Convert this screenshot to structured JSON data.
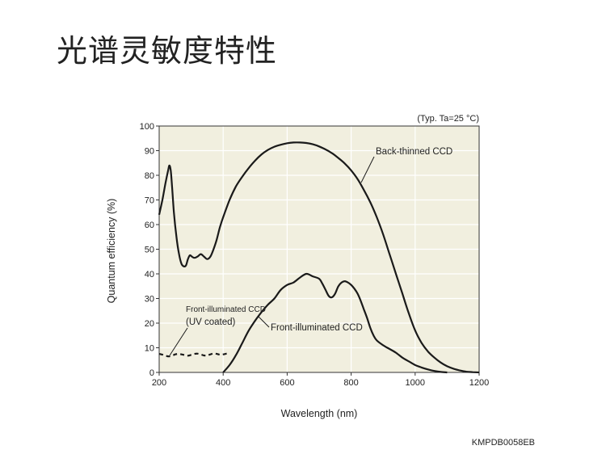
{
  "page": {
    "title": "光谱灵敏度特性",
    "doc_code": "KMPDB0058EB"
  },
  "chart_data": {
    "type": "line",
    "annotation_typ": "(Typ. Ta=25 °C)",
    "xlabel": "Wavelength (nm)",
    "ylabel": "Quantum efficiency (%)",
    "xlim": [
      200,
      1200
    ],
    "ylim": [
      0,
      100
    ],
    "x_ticks": [
      200,
      400,
      600,
      800,
      1000,
      1200
    ],
    "y_ticks": [
      0,
      10,
      20,
      30,
      40,
      50,
      60,
      70,
      80,
      90,
      100
    ],
    "grid": true,
    "plot_background": "#f1efdf",
    "line_color": "#1a1a1a",
    "series": [
      {
        "name": "Back-thinned CCD",
        "label": "Back-thinned CCD",
        "style": "solid",
        "x": [
          200,
          210,
          220,
          228,
          232,
          236,
          240,
          246,
          254,
          262,
          270,
          278,
          284,
          290,
          296,
          302,
          310,
          320,
          330,
          340,
          350,
          360,
          370,
          380,
          390,
          400,
          420,
          440,
          460,
          480,
          500,
          520,
          540,
          560,
          580,
          600,
          620,
          640,
          660,
          680,
          700,
          720,
          740,
          760,
          780,
          800,
          820,
          840,
          860,
          880,
          900,
          920,
          940,
          960,
          980,
          1000,
          1020,
          1040,
          1060,
          1080,
          1100,
          1120,
          1140,
          1160,
          1180,
          1200
        ],
        "y": [
          64,
          70,
          77,
          82,
          84,
          82,
          76,
          65,
          55,
          48,
          44,
          43,
          43.5,
          46,
          47.5,
          47,
          46.5,
          47,
          48,
          47,
          46,
          47,
          50,
          54,
          59,
          63,
          70,
          75.5,
          79.5,
          83,
          86,
          88.5,
          90.3,
          91.6,
          92.4,
          93,
          93.3,
          93.3,
          93.1,
          92.6,
          91.7,
          90.5,
          89,
          87,
          84.8,
          82,
          78.5,
          74,
          69,
          63,
          56,
          48,
          40,
          32,
          24,
          17,
          12,
          8.5,
          6,
          4,
          2.5,
          1.5,
          0.8,
          0.3,
          0.1,
          0
        ]
      },
      {
        "name": "Front-illuminated CCD",
        "label": "Front-illuminated CCD",
        "style": "solid",
        "x": [
          400,
          420,
          440,
          460,
          480,
          500,
          520,
          540,
          560,
          580,
          600,
          620,
          640,
          660,
          680,
          700,
          710,
          720,
          730,
          740,
          750,
          760,
          770,
          780,
          790,
          800,
          810,
          820,
          830,
          840,
          850,
          860,
          870,
          880,
          900,
          920,
          940,
          960,
          980,
          1000,
          1020,
          1040,
          1060,
          1080,
          1100
        ],
        "y": [
          0,
          3,
          7,
          12,
          17,
          21,
          24.5,
          27.5,
          30,
          33.5,
          35.5,
          36.5,
          38.5,
          40,
          39,
          38,
          36,
          33.5,
          31,
          30.5,
          32,
          35,
          36.5,
          37,
          36.5,
          35.5,
          34,
          32,
          29,
          25.5,
          22,
          18,
          15,
          13,
          11,
          9.5,
          8,
          6,
          4.5,
          3,
          2,
          1.2,
          0.6,
          0.2,
          0
        ]
      },
      {
        "name": "Front-illuminated CCD (UV coated)",
        "label_line1": "Front-illuminated CCD",
        "label_line2": "(UV coated)",
        "style": "dashed",
        "x": [
          200,
          210,
          220,
          230,
          240,
          250,
          260,
          270,
          280,
          290,
          300,
          310,
          320,
          330,
          340,
          350,
          360,
          370,
          380,
          390,
          400,
          410,
          420
        ],
        "y": [
          7.5,
          7.2,
          6.8,
          6.5,
          6.8,
          7.3,
          7.5,
          7.3,
          7,
          6.8,
          7.1,
          7.5,
          7.6,
          7.3,
          6.9,
          6.9,
          7.3,
          7.7,
          7.5,
          7.2,
          7.3,
          7.6,
          7.8
        ]
      }
    ]
  }
}
